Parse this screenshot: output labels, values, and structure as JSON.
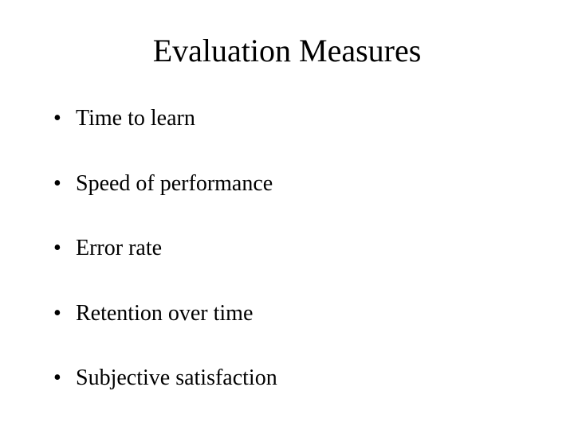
{
  "slide": {
    "title": "Evaluation Measures",
    "bullets": [
      "Time to learn",
      "Speed of performance",
      "Error rate",
      "Retention over time",
      "Subjective satisfaction"
    ]
  },
  "styling": {
    "background_color": "#ffffff",
    "text_color": "#000000",
    "font_family": "Times New Roman",
    "title_fontsize": 40,
    "bullet_fontsize": 28,
    "bullet_spacing": 48,
    "title_align": "center"
  }
}
